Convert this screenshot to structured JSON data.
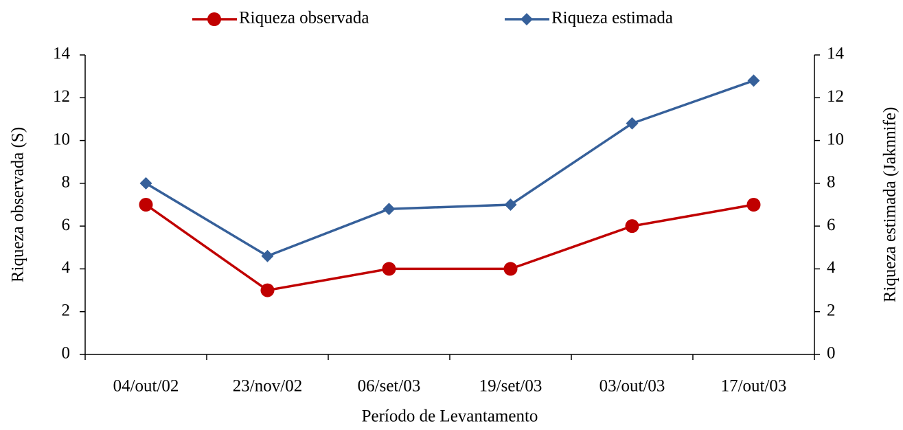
{
  "chart_data": {
    "type": "line",
    "x_label": "Período de Levantamento",
    "y_label": "Riqueza observada (S)",
    "y2_label": "Riqueza estimada (Jaknnife)",
    "categories": [
      "04/out/02",
      "23/nov/02",
      "06/set/03",
      "19/set/03",
      "03/out/03",
      "17/out/03"
    ],
    "series": [
      {
        "name": "Riqueza observada",
        "color": "#c00000",
        "marker": "circle",
        "values": [
          7,
          3,
          4,
          4,
          6,
          7
        ]
      },
      {
        "name": "Riqueza estimada",
        "color": "#36609a",
        "marker": "diamond",
        "axis": "y2",
        "values": [
          8,
          4.6,
          6.8,
          7,
          10.8,
          12.8
        ]
      }
    ],
    "ylim": [
      0,
      14
    ],
    "yticks": [
      0,
      2,
      4,
      6,
      8,
      10,
      12,
      14
    ],
    "y2lim": [
      0,
      14
    ],
    "y2ticks": [
      0,
      2,
      4,
      6,
      8,
      10,
      12,
      14
    ],
    "grid": false,
    "legend": "top"
  }
}
